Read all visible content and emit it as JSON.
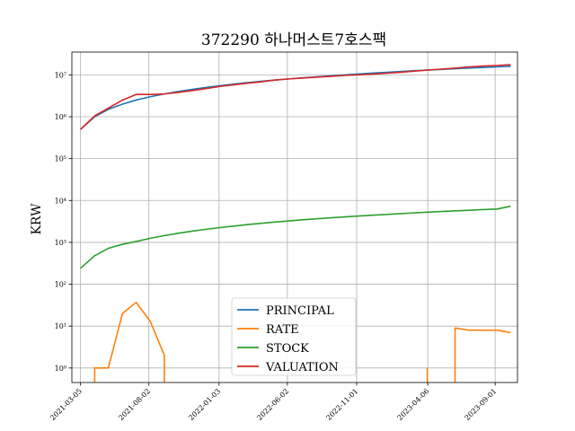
{
  "chart_data": {
    "type": "line",
    "title": "372290 하나머스트7호스팩",
    "xlabel": "",
    "ylabel": "KRW",
    "yscale": "log",
    "ylim": [
      0.45,
      35000000
    ],
    "xlim": [
      "2021-02-14",
      "2023-10-20"
    ],
    "grid": true,
    "legend_position": "lower-center",
    "x_ticks": [
      "2021-03-05",
      "2021-08-02",
      "2022-01-03",
      "2022-06-02",
      "2022-11-01",
      "2023-04-06",
      "2023-09-01"
    ],
    "y_ticks": [
      {
        "value": 1,
        "label": "10⁰"
      },
      {
        "value": 10,
        "label": "10¹"
      },
      {
        "value": 100,
        "label": "10²"
      },
      {
        "value": 1000,
        "label": "10³"
      },
      {
        "value": 10000,
        "label": "10⁴"
      },
      {
        "value": 100000,
        "label": "10⁵"
      },
      {
        "value": 1000000,
        "label": "10⁶"
      },
      {
        "value": 10000000,
        "label": "10⁷"
      }
    ],
    "series": [
      {
        "name": "PRINCIPAL",
        "color": "#1f77b4",
        "points": [
          [
            "2021-03-05",
            500000
          ],
          [
            "2021-04-05",
            1000000
          ],
          [
            "2021-05-05",
            1500000
          ],
          [
            "2021-06-05",
            2000000
          ],
          [
            "2021-07-05",
            2500000
          ],
          [
            "2021-08-05",
            3000000
          ],
          [
            "2021-09-05",
            3500000
          ],
          [
            "2021-10-05",
            4000000
          ],
          [
            "2021-11-05",
            4500000
          ],
          [
            "2021-12-05",
            5000000
          ],
          [
            "2022-01-05",
            5500000
          ],
          [
            "2022-02-05",
            6000000
          ],
          [
            "2022-03-05",
            6500000
          ],
          [
            "2022-04-05",
            7000000
          ],
          [
            "2022-05-05",
            7500000
          ],
          [
            "2022-06-05",
            8000000
          ],
          [
            "2022-07-05",
            8500000
          ],
          [
            "2022-08-05",
            9000000
          ],
          [
            "2022-09-05",
            9500000
          ],
          [
            "2022-10-05",
            10000000
          ],
          [
            "2022-11-05",
            10500000
          ],
          [
            "2022-12-05",
            11000000
          ],
          [
            "2023-01-05",
            11500000
          ],
          [
            "2023-02-05",
            12000000
          ],
          [
            "2023-03-05",
            12500000
          ],
          [
            "2023-04-05",
            13000000
          ],
          [
            "2023-05-05",
            13500000
          ],
          [
            "2023-06-05",
            14000000
          ],
          [
            "2023-07-05",
            14500000
          ],
          [
            "2023-08-05",
            15000000
          ],
          [
            "2023-09-05",
            15500000
          ],
          [
            "2023-10-05",
            16000000
          ]
        ]
      },
      {
        "name": "RATE",
        "color": "#ff7f0e",
        "points": [
          [
            "2021-04-05",
            0.3
          ],
          [
            "2021-04-05",
            1
          ],
          [
            "2021-05-05",
            1
          ],
          [
            "2021-06-05",
            20
          ],
          [
            "2021-07-05",
            37
          ],
          [
            "2021-08-05",
            13
          ],
          [
            "2021-09-05",
            2
          ],
          [
            "2021-09-05",
            0.3
          ]
        ],
        "segment_2": [
          [
            "2023-04-05",
            0.3
          ],
          [
            "2023-04-05",
            1
          ]
        ],
        "segment_3": [
          [
            "2023-06-05",
            0.3
          ],
          [
            "2023-06-05",
            9
          ],
          [
            "2023-07-05",
            8
          ],
          [
            "2023-08-05",
            8
          ],
          [
            "2023-09-05",
            8
          ],
          [
            "2023-10-05",
            7
          ]
        ]
      },
      {
        "name": "STOCK",
        "color": "#2ca02c",
        "points": [
          [
            "2021-03-05",
            240
          ],
          [
            "2021-04-05",
            480
          ],
          [
            "2021-05-05",
            720
          ],
          [
            "2021-06-05",
            900
          ],
          [
            "2021-07-05",
            1050
          ],
          [
            "2021-08-05",
            1250
          ],
          [
            "2021-09-05",
            1450
          ],
          [
            "2021-10-05",
            1650
          ],
          [
            "2021-11-05",
            1850
          ],
          [
            "2021-12-05",
            2050
          ],
          [
            "2022-01-05",
            2250
          ],
          [
            "2022-02-05",
            2450
          ],
          [
            "2022-03-05",
            2650
          ],
          [
            "2022-04-05",
            2850
          ],
          [
            "2022-05-05",
            3050
          ],
          [
            "2022-06-05",
            3250
          ],
          [
            "2022-07-05",
            3450
          ],
          [
            "2022-08-05",
            3650
          ],
          [
            "2022-09-05",
            3850
          ],
          [
            "2022-10-05",
            4050
          ],
          [
            "2022-11-05",
            4250
          ],
          [
            "2022-12-05",
            4450
          ],
          [
            "2023-01-05",
            4650
          ],
          [
            "2023-02-05",
            4850
          ],
          [
            "2023-03-05",
            5050
          ],
          [
            "2023-04-05",
            5250
          ],
          [
            "2023-05-05",
            5450
          ],
          [
            "2023-06-05",
            5650
          ],
          [
            "2023-07-05",
            5850
          ],
          [
            "2023-08-05",
            6050
          ],
          [
            "2023-09-05",
            6250
          ],
          [
            "2023-10-05",
            7300
          ]
        ]
      },
      {
        "name": "VALUATION",
        "color": "#d62728",
        "points": [
          [
            "2021-03-05",
            500000
          ],
          [
            "2021-04-05",
            1050000
          ],
          [
            "2021-05-05",
            1600000
          ],
          [
            "2021-06-05",
            2500000
          ],
          [
            "2021-07-05",
            3400000
          ],
          [
            "2021-08-05",
            3400000
          ],
          [
            "2021-09-05",
            3500000
          ],
          [
            "2021-10-05",
            3800000
          ],
          [
            "2021-11-05",
            4200000
          ],
          [
            "2021-12-05",
            4700000
          ],
          [
            "2022-01-05",
            5300000
          ],
          [
            "2022-02-05",
            5800000
          ],
          [
            "2022-03-05",
            6300000
          ],
          [
            "2022-04-05",
            6800000
          ],
          [
            "2022-05-05",
            7500000
          ],
          [
            "2022-06-05",
            8000000
          ],
          [
            "2022-07-05",
            8400000
          ],
          [
            "2022-08-05",
            8800000
          ],
          [
            "2022-09-05",
            9200000
          ],
          [
            "2022-10-05",
            9700000
          ],
          [
            "2022-11-05",
            10000000
          ],
          [
            "2022-12-05",
            10400000
          ],
          [
            "2023-01-05",
            10900000
          ],
          [
            "2023-02-05",
            11500000
          ],
          [
            "2023-03-05",
            12200000
          ],
          [
            "2023-04-05",
            13000000
          ],
          [
            "2023-05-05",
            13700000
          ],
          [
            "2023-06-05",
            14500000
          ],
          [
            "2023-07-05",
            15500000
          ],
          [
            "2023-08-05",
            16200000
          ],
          [
            "2023-09-05",
            16800000
          ],
          [
            "2023-10-05",
            17500000
          ]
        ]
      }
    ]
  }
}
